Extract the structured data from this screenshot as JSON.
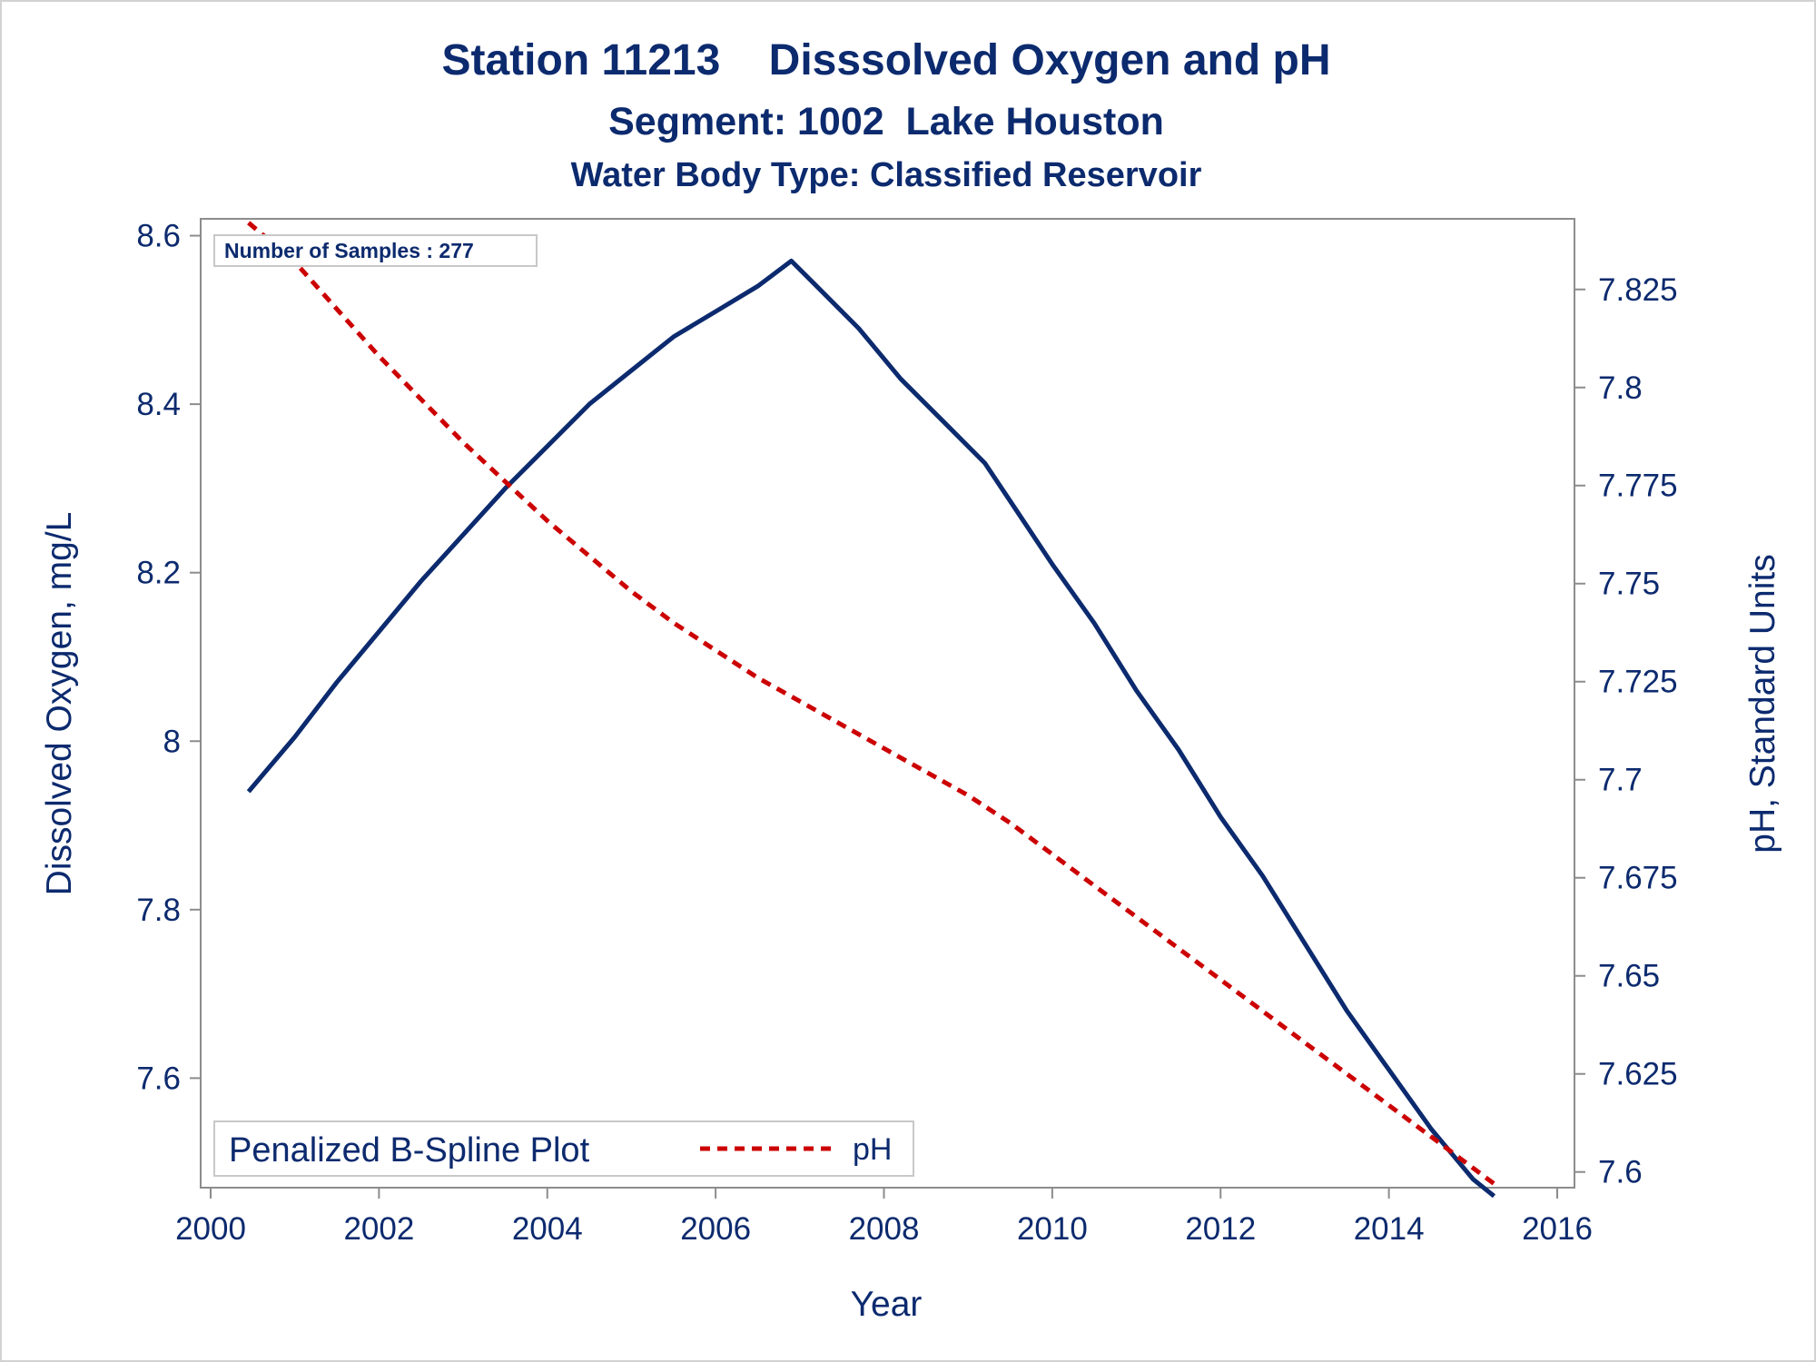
{
  "colors": {
    "text": "#0c2a6e",
    "do_line": "#0c2a6e",
    "ph_line": "#cc0000",
    "axis": "#8c8c8c"
  },
  "titles": {
    "line1": "Station 11213    Disssolved Oxygen and pH",
    "line2": "Segment: 1002  Lake Houston",
    "line3": "Water Body Type: Classified Reservoir"
  },
  "inset": {
    "text": "Number of Samples : 277"
  },
  "legend": {
    "title": "Penalized B-Spline Plot",
    "item": "pH"
  },
  "chart_data": {
    "type": "line",
    "xlabel": "Year",
    "ylabel": "Dissolved Oxygen, mg/L",
    "y2label": "pH, Standard Units",
    "xlim": [
      2000,
      2016
    ],
    "ylim": [
      7.47,
      8.62
    ],
    "y2lim": [
      7.596,
      7.843
    ],
    "x_ticks": [
      "2000",
      "2002",
      "2004",
      "2006",
      "2008",
      "2010",
      "2012",
      "2014",
      "2016"
    ],
    "y_ticks": [
      "7.6",
      "7.8",
      "8",
      "8.2",
      "8.4",
      "8.6"
    ],
    "y2_ticks": [
      "7.6",
      "7.625",
      "7.65",
      "7.675",
      "7.7",
      "7.725",
      "7.75",
      "7.775",
      "7.8",
      "7.825"
    ],
    "grid": false,
    "legend_position": "bottom-left",
    "series": [
      {
        "name": "",
        "axis": "left",
        "style": "solid",
        "x": [
          2000.45,
          2001.0,
          2001.5,
          2002.0,
          2002.5,
          2003.0,
          2003.5,
          2004.0,
          2004.5,
          2005.0,
          2005.5,
          2006.0,
          2006.5,
          2006.9,
          2007.2,
          2007.7,
          2008.2,
          2008.7,
          2009.2,
          2009.6,
          2010.0,
          2010.5,
          2011.0,
          2011.5,
          2012.0,
          2012.5,
          2013.0,
          2013.5,
          2014.0,
          2014.5,
          2015.0,
          2015.25
        ],
        "values": [
          7.94,
          8.005,
          8.07,
          8.13,
          8.19,
          8.245,
          8.3,
          8.35,
          8.4,
          8.44,
          8.48,
          8.51,
          8.54,
          8.57,
          8.54,
          8.49,
          8.43,
          8.38,
          8.33,
          8.27,
          8.21,
          8.14,
          8.06,
          7.99,
          7.91,
          7.84,
          7.76,
          7.68,
          7.61,
          7.54,
          7.48,
          7.46
        ]
      },
      {
        "name": "pH",
        "axis": "right",
        "style": "dashed",
        "x": [
          2000.45,
          2001.0,
          2001.5,
          2002.0,
          2002.5,
          2003.0,
          2003.5,
          2004.0,
          2004.5,
          2005.0,
          2005.5,
          2006.0,
          2006.5,
          2007.0,
          2007.5,
          2008.0,
          2008.5,
          2009.0,
          2009.5,
          2010.0,
          2010.5,
          2011.0,
          2011.5,
          2012.0,
          2012.5,
          2013.0,
          2013.5,
          2014.0,
          2014.5,
          2015.0,
          2015.25
        ],
        "values": [
          7.842,
          7.832,
          7.82,
          7.808,
          7.797,
          7.786,
          7.776,
          7.766,
          7.757,
          7.748,
          7.74,
          7.733,
          7.726,
          7.72,
          7.714,
          7.708,
          7.702,
          7.696,
          7.689,
          7.681,
          7.673,
          7.665,
          7.657,
          7.649,
          7.641,
          7.633,
          7.625,
          7.617,
          7.609,
          7.601,
          7.597
        ]
      }
    ]
  }
}
